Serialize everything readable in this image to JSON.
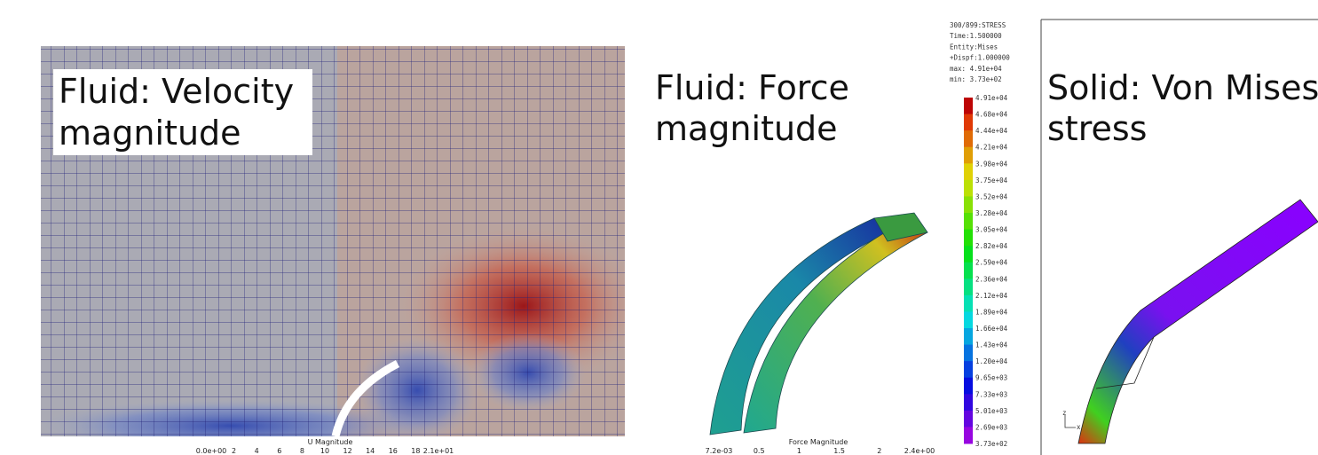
{
  "panels": [
    {
      "title_lines": [
        "Fluid: Velocity",
        "magnitude"
      ],
      "colorbar": {
        "title": "U Magnitude",
        "ticks": [
          "0.0e+00",
          "2",
          "4",
          "6",
          "8",
          "10",
          "12",
          "14",
          "16",
          "18",
          "2.1e+01"
        ]
      }
    },
    {
      "title_lines": [
        "Fluid: Force",
        "magnitude"
      ],
      "colorbar": {
        "title": "Force Magnitude",
        "ticks": [
          "7.2e-03",
          "0.5",
          "1",
          "1.5",
          "2",
          "2.4e+00"
        ]
      }
    },
    {
      "title_lines": [
        "Solid: Von Mises",
        "stress"
      ],
      "legend": {
        "header": [
          "300/899:STRESS",
          "Time:1.500000",
          "Entity:Mises",
          "+Dispf:1.000000",
          "max: 4.91e+04",
          "min: 3.73e+02"
        ],
        "levels": [
          "4.91e+04",
          "4.68e+04",
          "4.44e+04",
          "4.21e+04",
          "3.98e+04",
          "3.75e+04",
          "3.52e+04",
          "3.28e+04",
          "3.05e+04",
          "2.82e+04",
          "2.59e+04",
          "2.36e+04",
          "2.12e+04",
          "1.89e+04",
          "1.66e+04",
          "1.43e+04",
          "1.20e+04",
          "9.65e+03",
          "7.33e+03",
          "5.01e+03",
          "2.69e+03",
          "3.73e+02"
        ]
      },
      "axes": [
        "z",
        "x"
      ]
    }
  ]
}
